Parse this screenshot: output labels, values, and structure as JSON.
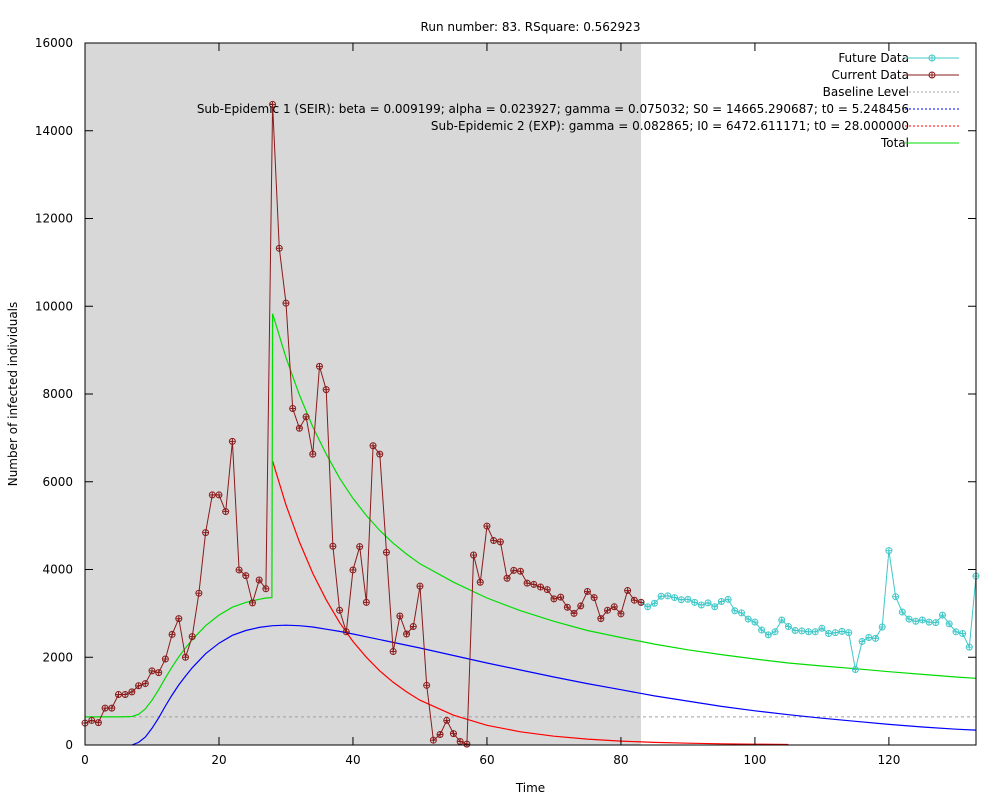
{
  "chart_data": {
    "type": "line",
    "title": "Run number: 83. RSquare: 0.562923",
    "xlabel": "Time",
    "ylabel": "Number of infected individuals",
    "xlim": [
      0,
      133
    ],
    "ylim": [
      0,
      16000
    ],
    "xticks": [
      0,
      20,
      40,
      60,
      80,
      100,
      120
    ],
    "yticks": [
      0,
      2000,
      4000,
      6000,
      8000,
      10000,
      12000,
      14000,
      16000
    ],
    "xtick_labels": [
      "0",
      "20",
      "40",
      "60",
      "80",
      "100",
      "120"
    ],
    "ytick_labels": [
      "0",
      "2000",
      "4000",
      "6000",
      "8000",
      "10000",
      "12000",
      "14000",
      "16000"
    ],
    "fit_window": [
      0,
      83
    ],
    "legend_placement": "top-right",
    "colors": {
      "fit_window_fill": "#d8d8d8",
      "future": "#40c8c8",
      "current": "#8b1a1a",
      "baseline": "#a0a0a0",
      "seir": "#0000ff",
      "exp": "#ff0000",
      "total": "#00dd00"
    },
    "legend": [
      {
        "label": "Future Data",
        "series": "future"
      },
      {
        "label": "Current Data",
        "series": "current"
      },
      {
        "label": "Baseline Level",
        "series": "baseline"
      },
      {
        "label": "Sub-Epidemic 1 (SEIR): beta = 0.009199; alpha = 0.023927; gamma = 0.075032; S0 = 14665.290687; t0 = 5.248456",
        "series": "seir"
      },
      {
        "label": "Sub-Epidemic 2 (EXP): gamma = 0.082865; I0 = 6472.611171; t0 = 28.000000",
        "series": "exp"
      },
      {
        "label": "Total",
        "series": "total"
      }
    ],
    "baseline_level": 640,
    "current_data": {
      "x": [
        0,
        1,
        2,
        3,
        4,
        5,
        6,
        7,
        8,
        9,
        10,
        11,
        12,
        13,
        14,
        15,
        16,
        17,
        18,
        19,
        20,
        21,
        22,
        23,
        24,
        25,
        26,
        27,
        28,
        29,
        30,
        31,
        32,
        33,
        34,
        35,
        36,
        37,
        38,
        39,
        40,
        41,
        42,
        43,
        44,
        45,
        46,
        47,
        48,
        49,
        50,
        51,
        52,
        53,
        54,
        55,
        56,
        57,
        58,
        59,
        60,
        61,
        62,
        63,
        64,
        65,
        66,
        67,
        68,
        69,
        70,
        71,
        72,
        73,
        74,
        75,
        76,
        77,
        78,
        79,
        80,
        81,
        82,
        83
      ],
      "y": [
        500,
        560,
        510,
        840,
        840,
        1150,
        1150,
        1210,
        1350,
        1400,
        1690,
        1650,
        1960,
        2520,
        2880,
        2000,
        2470,
        3460,
        4840,
        5700,
        5700,
        5320,
        6920,
        3990,
        3860,
        3240,
        3760,
        3560,
        14600,
        11320,
        10070,
        7670,
        7220,
        7480,
        6630,
        8630,
        8100,
        4530,
        3070,
        2580,
        3990,
        4520,
        3250,
        6820,
        6630,
        4390,
        2130,
        2940,
        2530,
        2700,
        3620,
        1360,
        110,
        240,
        560,
        260,
        80,
        20,
        4330,
        3710,
        4990,
        4660,
        4630,
        3800,
        3980,
        3960,
        3690,
        3660,
        3600,
        3540,
        3330,
        3370,
        3140,
        3000,
        3170,
        3500,
        3360,
        2880,
        3070,
        3150,
        2990,
        3520,
        3300,
        3250
      ]
    },
    "future_data": {
      "x": [
        83,
        84,
        85,
        86,
        87,
        88,
        89,
        90,
        91,
        92,
        93,
        94,
        95,
        96,
        97,
        98,
        99,
        100,
        101,
        102,
        103,
        104,
        105,
        106,
        107,
        108,
        109,
        110,
        111,
        112,
        113,
        114,
        115,
        116,
        117,
        118,
        119,
        120,
        121,
        122,
        123,
        124,
        125,
        126,
        127,
        128,
        129,
        130,
        131,
        132,
        133
      ],
      "y": [
        3250,
        3150,
        3230,
        3390,
        3400,
        3360,
        3310,
        3320,
        3250,
        3190,
        3240,
        3150,
        3270,
        3320,
        3060,
        3010,
        2870,
        2800,
        2620,
        2510,
        2580,
        2850,
        2700,
        2610,
        2600,
        2580,
        2580,
        2660,
        2540,
        2560,
        2590,
        2560,
        1720,
        2360,
        2450,
        2430,
        2690,
        4430,
        3380,
        3030,
        2870,
        2820,
        2850,
        2800,
        2790,
        2960,
        2760,
        2580,
        2540,
        2230,
        3850
      ]
    },
    "seir_curve": {
      "x": [
        7,
        8,
        9,
        10,
        11,
        12,
        13,
        14,
        15,
        16,
        18,
        20,
        22,
        24,
        26,
        28,
        30,
        32,
        34,
        36,
        38,
        40,
        45,
        50,
        55,
        60,
        65,
        70,
        75,
        80,
        85,
        90,
        95,
        100,
        105,
        110,
        115,
        120,
        125,
        130,
        133
      ],
      "y": [
        0,
        60,
        180,
        380,
        620,
        890,
        1140,
        1370,
        1570,
        1760,
        2080,
        2320,
        2500,
        2610,
        2680,
        2720,
        2730,
        2720,
        2690,
        2640,
        2590,
        2530,
        2370,
        2210,
        2040,
        1870,
        1710,
        1550,
        1400,
        1260,
        1120,
        1000,
        880,
        780,
        690,
        610,
        540,
        470,
        410,
        360,
        340
      ]
    },
    "exp_curve": {
      "x": [
        28,
        30,
        32,
        34,
        36,
        38,
        40,
        42,
        44,
        46,
        48,
        50,
        55,
        60,
        65,
        70,
        75,
        80,
        85,
        90,
        95,
        100,
        105
      ],
      "y": [
        6470,
        5470,
        4630,
        3910,
        3310,
        2790,
        2360,
        2000,
        1690,
        1430,
        1210,
        1020,
        680,
        450,
        300,
        200,
        135,
        90,
        60,
        40,
        27,
        18,
        12
      ]
    },
    "total_curve": {
      "x": [
        0,
        5,
        7,
        8,
        9,
        10,
        11,
        12,
        13,
        14,
        15,
        16,
        18,
        20,
        22,
        24,
        26,
        27,
        27.9,
        28,
        30,
        32,
        34,
        36,
        38,
        40,
        42,
        44,
        46,
        48,
        50,
        55,
        60,
        65,
        70,
        75,
        80,
        85,
        90,
        95,
        100,
        105,
        110,
        115,
        120,
        125,
        130,
        133
      ],
      "y": [
        640,
        640,
        650,
        700,
        820,
        1020,
        1260,
        1530,
        1780,
        2010,
        2210,
        2400,
        2720,
        2960,
        3140,
        3250,
        3320,
        3350,
        3360,
        9830,
        8830,
        7980,
        7250,
        6630,
        6080,
        5620,
        5230,
        4890,
        4600,
        4350,
        4130,
        3710,
        3350,
        3060,
        2820,
        2610,
        2450,
        2300,
        2170,
        2060,
        1960,
        1870,
        1800,
        1740,
        1670,
        1610,
        1550,
        1520
      ]
    }
  }
}
